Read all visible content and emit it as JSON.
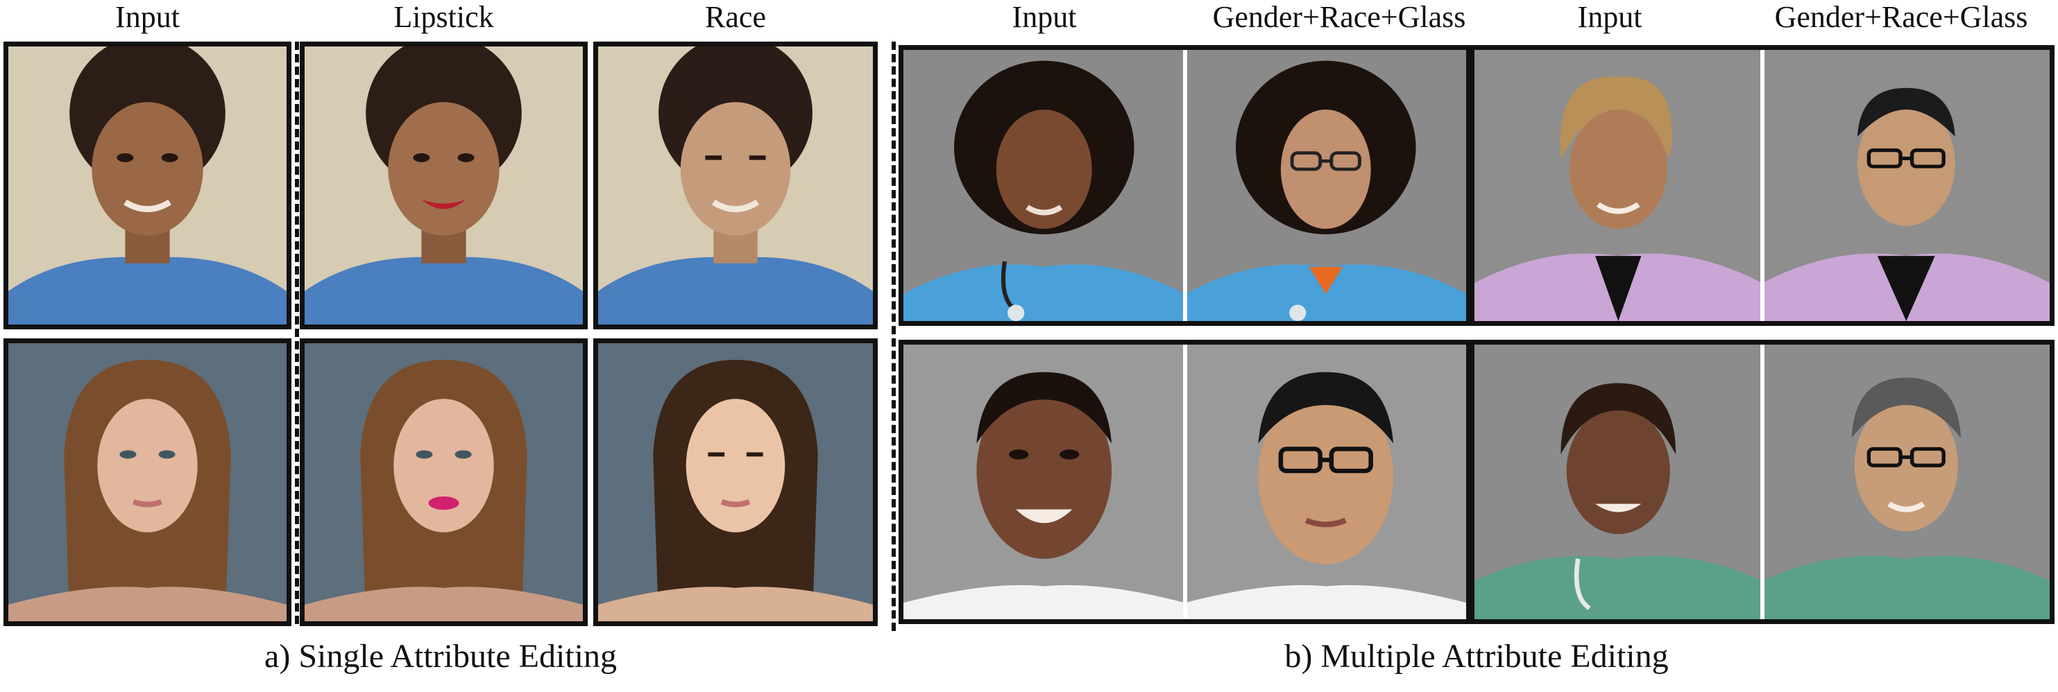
{
  "headers": {
    "single": [
      "Input",
      "Lipstick",
      "Race"
    ],
    "multi_a": [
      "Input",
      "Gender+Race+Glass"
    ],
    "multi_b": [
      "Input",
      "Gender+Race+Glass"
    ]
  },
  "captions": {
    "left": "a) Single Attribute Editing",
    "right": "b) Multiple Attribute Editing"
  },
  "panels": {
    "r1c1": "woman with short curly dark hair, blue top, smiling",
    "r1c2": "same woman with red lipstick",
    "r1c3": "same woman edited to East Asian appearance",
    "r2c1": "young woman with long brown hair, neutral expression",
    "r2c2": "same woman with pink lipstick",
    "r2c3": "same woman edited to East Asian appearance",
    "r1d1": "woman with curly hair in blue scrubs and stethoscope",
    "r1d2": "edited to East Asian man with glasses in blue scrubs",
    "r1d3": "smiling woman in lavender scrubs",
    "r1d4": "edited to East Asian man with glasses in lavender coat",
    "r2d1": "smiling woman with short dark hair",
    "r2d2": "edited to East Asian man with glasses",
    "r2d3": "smiling woman in green scrubs",
    "r2d4": "edited to East Asian man with glasses in green scrubs"
  },
  "colors": {
    "border": "#111111",
    "divider": "#ffffff"
  }
}
